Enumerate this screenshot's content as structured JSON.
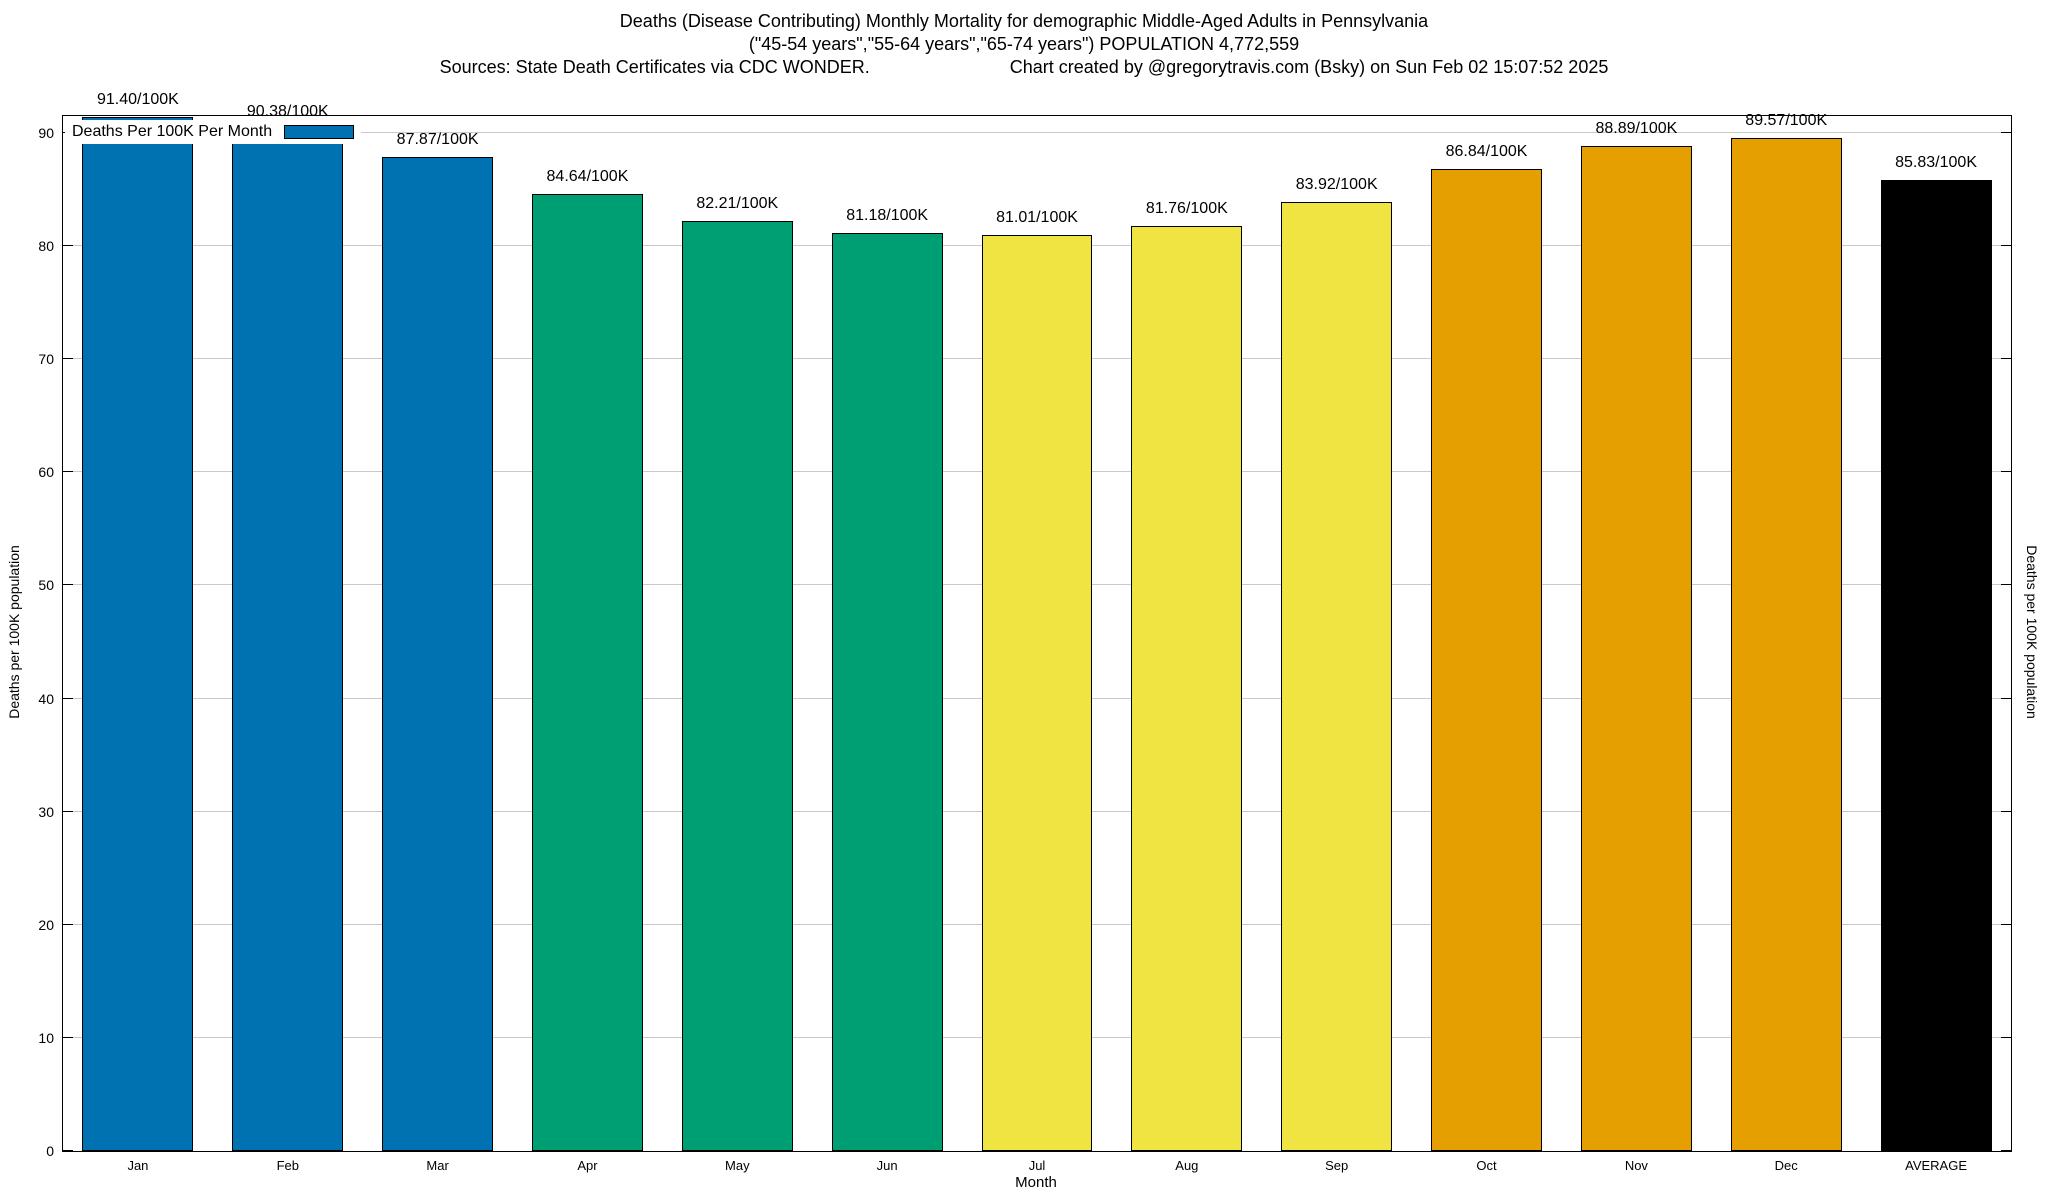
{
  "chart_data": {
    "type": "bar",
    "title": "Deaths (Disease Contributing) Monthly Mortality for demographic Middle-Aged Adults in Pennsylvania",
    "subtitle": "(\"45-54 years\",\"55-64 years\",\"65-74 years\") POPULATION 4,772,559",
    "source_note": "Sources: State Death Certificates via CDC WONDER.",
    "credit": "Chart created by @gregorytravis.com (Bsky) on Sun Feb 02 15:07:52 2025",
    "categories": [
      "Jan",
      "Feb",
      "Mar",
      "Apr",
      "May",
      "Jun",
      "Jul",
      "Aug",
      "Sep",
      "Oct",
      "Nov",
      "Dec",
      "AVERAGE"
    ],
    "values": [
      91.4,
      90.38,
      87.87,
      84.64,
      82.21,
      81.18,
      81.01,
      81.76,
      83.92,
      86.84,
      88.89,
      89.57,
      85.83
    ],
    "value_labels": [
      "91.40/100K",
      "90.38/100K",
      "87.87/100K",
      "84.64/100K",
      "82.21/100K",
      "81.18/100K",
      "81.01/100K",
      "81.76/100K",
      "83.92/100K",
      "86.84/100K",
      "88.89/100K",
      "89.57/100K",
      "85.83/100K"
    ],
    "bar_colors": [
      "#0072B2",
      "#0072B2",
      "#0072B2",
      "#009E73",
      "#009E73",
      "#009E73",
      "#F0E442",
      "#F0E442",
      "#F0E442",
      "#E69F00",
      "#E69F00",
      "#E69F00",
      "#000000"
    ],
    "legend_label": "Deaths Per 100K Per Month",
    "legend_color": "#0072B2",
    "legend_position": "top-left",
    "xlabel": "Month",
    "ylabel": "Deaths per 100K population",
    "ylabel_right": "Deaths per 100K population",
    "ylim": [
      0,
      91.5
    ],
    "yticks": [
      0,
      10,
      20,
      30,
      40,
      50,
      60,
      70,
      80,
      90
    ],
    "grid": true
  }
}
